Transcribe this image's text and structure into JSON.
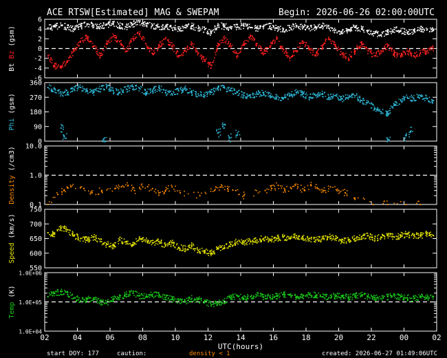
{
  "header": {
    "title": "ACE RTSW[Estimated] MAG & SWEPAM",
    "begin": "Begin: 2026-06-26 02:00:00UTC"
  },
  "footer": {
    "start_doy": "start DOY: 177",
    "caution": "caution:",
    "density_note": "density < 1",
    "created": "created: 2026-06-27 01:49:06UTC"
  },
  "colors": {
    "background": "#000000",
    "frame": "#ffffff",
    "bt": "#ffffff",
    "bz": "#ff2020",
    "phi": "#2fb8d8",
    "density": "#ff8c00",
    "speed": "#e6e600",
    "temp": "#18c818"
  },
  "chart_data": {
    "type": "scatter",
    "x_axis": {
      "label": "UTC(hours)",
      "range": [
        2,
        26
      ],
      "tick_labels": [
        "02",
        "04",
        "06",
        "08",
        "10",
        "12",
        "14",
        "16",
        "18",
        "20",
        "22",
        "00",
        "02"
      ]
    },
    "panels": [
      {
        "key": "mag",
        "ylabel_parts": [
          "Bt",
          "Bz",
          "(gsm)"
        ],
        "ylim": [
          -6,
          6
        ],
        "scale": "linear",
        "tick_labels": [
          "6",
          "4",
          "2",
          "0",
          "-2",
          "-4",
          "-6"
        ],
        "reference_lines": [
          0
        ],
        "series": [
          {
            "name": "Bt",
            "color_key": "bt",
            "x": [
              2.2,
              2.6,
              3,
              3.4,
              3.8,
              4.2,
              4.6,
              5,
              5.4,
              5.8,
              6.2,
              6.6,
              7,
              7.4,
              7.8,
              8.2,
              8.6,
              9,
              9.4,
              9.8,
              10.2,
              10.6,
              11,
              11.4,
              11.8,
              12.2,
              12.6,
              13,
              13.4,
              13.8,
              14.2,
              14.6,
              15,
              15.4,
              15.8,
              16.2,
              16.6,
              17,
              17.4,
              17.8,
              18.2,
              18.6,
              19,
              19.4,
              19.8,
              20.2,
              20.6,
              21,
              21.4,
              21.8,
              22.2,
              22.6,
              23,
              23.4,
              23.8,
              24.2,
              24.6,
              25,
              25.4,
              25.8
            ],
            "y": [
              4.2,
              4.5,
              4.8,
              4.3,
              4.0,
              4.6,
              5.0,
              4.8,
              4.5,
              4.9,
              5.2,
              4.7,
              4.4,
              5.0,
              5.4,
              5.1,
              4.7,
              4.4,
              4.6,
              4.2,
              4.0,
              4.3,
              4.6,
              4.1,
              3.9,
              3.2,
              4.8,
              4.5,
              4.2,
              4.4,
              4.6,
              4.3,
              4.1,
              4.4,
              4.6,
              4.2,
              3.9,
              4.3,
              4.7,
              4.4,
              4.1,
              4.3,
              4.6,
              4.2,
              3.8,
              3.5,
              3.9,
              4.3,
              4.0,
              3.6,
              3.1,
              2.8,
              3.4,
              3.9,
              3.7,
              3.3,
              3.6,
              4.0,
              3.8,
              3.7
            ]
          },
          {
            "name": "Bz",
            "color_key": "bz",
            "x": [
              2.2,
              2.6,
              3,
              3.4,
              3.8,
              4.2,
              4.6,
              5,
              5.4,
              5.8,
              6.2,
              6.6,
              7,
              7.4,
              7.8,
              8.2,
              8.6,
              9,
              9.4,
              9.8,
              10.2,
              10.6,
              11,
              11.4,
              11.8,
              12.2,
              12.6,
              13,
              13.4,
              13.8,
              14.2,
              14.6,
              15,
              15.4,
              15.8,
              16.2,
              16.6,
              17,
              17.4,
              17.8,
              18.2,
              18.6,
              19,
              19.4,
              19.8,
              20.2,
              20.6,
              21,
              21.4,
              21.8,
              22.2,
              22.6,
              23,
              23.4,
              23.8,
              24.2,
              24.6,
              25,
              25.4,
              25.8
            ],
            "y": [
              -1.5,
              -3.5,
              -4.0,
              -2.5,
              -0.5,
              1.5,
              2.5,
              0.5,
              -1.5,
              1.0,
              2.5,
              1.5,
              -0.5,
              2.0,
              3.0,
              1.0,
              -1.0,
              0.5,
              2.0,
              0.5,
              -1.5,
              -0.5,
              1.0,
              -1.0,
              -2.5,
              -3.5,
              0.5,
              2.0,
              0.5,
              -1.5,
              1.0,
              2.5,
              1.0,
              -1.0,
              0.5,
              2.0,
              0.0,
              -2.0,
              -0.5,
              1.5,
              0.0,
              -1.5,
              0.5,
              2.0,
              0.5,
              -1.0,
              -2.0,
              -0.5,
              1.0,
              -0.5,
              -1.5,
              -0.5,
              0.5,
              -1.0,
              -1.5,
              -0.5,
              -1.5,
              -1.0,
              -0.5,
              0.0
            ]
          }
        ]
      },
      {
        "key": "phi",
        "ylabel_parts": [
          "Phi",
          "(gsm)"
        ],
        "ylim": [
          0,
          360
        ],
        "scale": "linear",
        "tick_labels": [
          "360",
          "270",
          "180",
          "90",
          "0"
        ],
        "series": [
          {
            "name": "Phi",
            "color_key": "phi",
            "x": [
              2.2,
              2.6,
              3,
              3.4,
              3.8,
              4.2,
              4.6,
              5,
              5.4,
              5.8,
              6.2,
              6.6,
              7,
              7.4,
              7.8,
              8.2,
              8.6,
              9,
              9.4,
              9.8,
              10.2,
              10.6,
              11,
              11.4,
              11.8,
              12.2,
              12.6,
              13,
              13.4,
              13.8,
              14.2,
              14.6,
              15,
              15.4,
              15.8,
              16.2,
              16.6,
              17,
              17.4,
              17.8,
              18.2,
              18.6,
              19,
              19.4,
              19.8,
              20.2,
              20.6,
              21,
              21.4,
              21.8,
              22.2,
              22.6,
              23,
              23.4,
              23.8,
              24.2,
              24.6,
              25,
              25.4,
              25.8
            ],
            "y": [
              330,
              320,
              290,
              300,
              320,
              330,
              310,
              300,
              320,
              335,
              310,
              300,
              320,
              335,
              325,
              300,
              310,
              330,
              300,
              290,
              310,
              320,
              300,
              290,
              280,
              300,
              320,
              330,
              310,
              300,
              280,
              270,
              290,
              300,
              280,
              270,
              260,
              280,
              300,
              290,
              270,
              280,
              290,
              270,
              280,
              260,
              270,
              280,
              250,
              240,
              200,
              180,
              170,
              220,
              250,
              270,
              260,
              280,
              260,
              250
            ]
          },
          {
            "name": "Phi (low)",
            "color_key": "phi",
            "x": [
              3.0,
              3.2,
              5.6,
              12.6,
              12.9,
              13.3,
              13.8,
              23.0,
              24.0,
              24.4
            ],
            "y": [
              80,
              30,
              10,
              50,
              90,
              20,
              40,
              10,
              20,
              60
            ]
          }
        ]
      },
      {
        "key": "density",
        "ylabel_parts": [
          "Density",
          "(/cm3)"
        ],
        "ylim": [
          0.1,
          10
        ],
        "scale": "log",
        "tick_labels": [
          "10.0",
          "1.0",
          "0.1"
        ],
        "reference_lines": [
          1.0
        ],
        "series": [
          {
            "name": "Density",
            "color_key": "density",
            "x": [
              2.2,
              2.8,
              3.2,
              3.6,
              4.4,
              4.9,
              5.5,
              6.3,
              6.7,
              7.1,
              7.5,
              8.0,
              8.6,
              9.0,
              9.4,
              9.8,
              10.3,
              11.5,
              12.4,
              12.8,
              13.2,
              13.7,
              14.2,
              15.5,
              15.9,
              16.3,
              16.7,
              17.1,
              17.5,
              17.9,
              18.3,
              18.7,
              19.1,
              19.5,
              20.0,
              20.4,
              21.0,
              22.1,
              23.0,
              24.1,
              25.0
            ],
            "y": [
              0.1,
              0.22,
              0.3,
              0.4,
              0.35,
              0.25,
              0.3,
              0.35,
              0.4,
              0.45,
              0.3,
              0.4,
              0.35,
              0.25,
              0.3,
              0.4,
              0.25,
              0.2,
              0.3,
              0.4,
              0.35,
              0.3,
              0.2,
              0.3,
              0.35,
              0.45,
              0.3,
              0.35,
              0.4,
              0.3,
              0.45,
              0.35,
              0.3,
              0.4,
              0.3,
              0.25,
              0.15,
              0.1,
              0.1,
              0.1,
              0.1
            ]
          }
        ]
      },
      {
        "key": "speed",
        "ylabel_parts": [
          "Speed",
          "(km/s)"
        ],
        "ylim": [
          550,
          750
        ],
        "scale": "linear",
        "tick_labels": [
          "750",
          "700",
          "650",
          "600",
          "550"
        ],
        "series": [
          {
            "name": "Speed",
            "color_key": "speed",
            "x": [
              2.2,
              2.6,
              3,
              3.4,
              3.8,
              4.2,
              4.6,
              5,
              5.4,
              5.8,
              6.2,
              6.6,
              7,
              7.4,
              7.8,
              8.2,
              8.6,
              9,
              9.4,
              9.8,
              10.2,
              10.6,
              11,
              11.4,
              11.8,
              12.2,
              12.6,
              13,
              13.4,
              13.8,
              14.2,
              14.6,
              15,
              15.4,
              15.8,
              16.2,
              16.6,
              17,
              17.4,
              17.8,
              18.2,
              18.6,
              19,
              19.4,
              19.8,
              20.2,
              20.6,
              21,
              21.4,
              21.8,
              22.2,
              22.6,
              23,
              23.4,
              23.8,
              24.2,
              24.6,
              25,
              25.4,
              25.8
            ],
            "y": [
              670,
              665,
              685,
              680,
              660,
              650,
              645,
              655,
              640,
              630,
              625,
              645,
              640,
              630,
              650,
              645,
              635,
              640,
              625,
              635,
              620,
              615,
              625,
              610,
              605,
              600,
              615,
              620,
              630,
              640,
              635,
              640,
              645,
              650,
              645,
              650,
              655,
              650,
              660,
              655,
              650,
              645,
              650,
              655,
              650,
              640,
              645,
              650,
              655,
              660,
              650,
              655,
              660,
              655,
              660,
              665,
              660,
              660,
              665,
              660
            ]
          }
        ]
      },
      {
        "key": "temp",
        "ylabel_parts": [
          "Temp",
          "(K)"
        ],
        "ylim": [
          10000,
          1000000
        ],
        "scale": "log",
        "tick_labels": [
          "1.0E+06",
          "1.0E+05",
          "1.0E+04"
        ],
        "reference_lines": [
          100000
        ],
        "series": [
          {
            "name": "Temp",
            "color_key": "temp",
            "x": [
              2.2,
              2.6,
              3,
              3.4,
              3.8,
              4.2,
              4.6,
              5,
              5.4,
              5.8,
              6.2,
              6.6,
              7,
              7.4,
              7.8,
              8.2,
              8.6,
              9,
              9.4,
              9.8,
              10.2,
              10.6,
              11,
              11.4,
              11.8,
              12.2,
              12.6,
              13,
              13.4,
              13.8,
              14.2,
              14.6,
              15,
              15.4,
              15.8,
              16.2,
              16.6,
              17,
              17.4,
              17.8,
              18.2,
              18.6,
              19,
              19.4,
              19.8,
              20.2,
              20.6,
              21,
              21.4,
              21.8,
              22.2,
              22.6,
              23,
              23.4,
              23.8,
              24.2,
              24.6,
              25,
              25.4,
              25.8
            ],
            "y": [
              150000,
              200000,
              220000,
              180000,
              140000,
              110000,
              120000,
              130000,
              100000,
              90000,
              120000,
              140000,
              180000,
              200000,
              160000,
              150000,
              180000,
              170000,
              140000,
              120000,
              110000,
              100000,
              130000,
              120000,
              100000,
              80000,
              90000,
              110000,
              140000,
              160000,
              130000,
              150000,
              170000,
              150000,
              140000,
              160000,
              180000,
              170000,
              150000,
              160000,
              180000,
              170000,
              150000,
              140000,
              160000,
              150000,
              140000,
              160000,
              170000,
              150000,
              140000,
              130000,
              150000,
              160000,
              150000,
              140000,
              130000,
              150000,
              140000,
              150000
            ]
          }
        ]
      }
    ]
  }
}
